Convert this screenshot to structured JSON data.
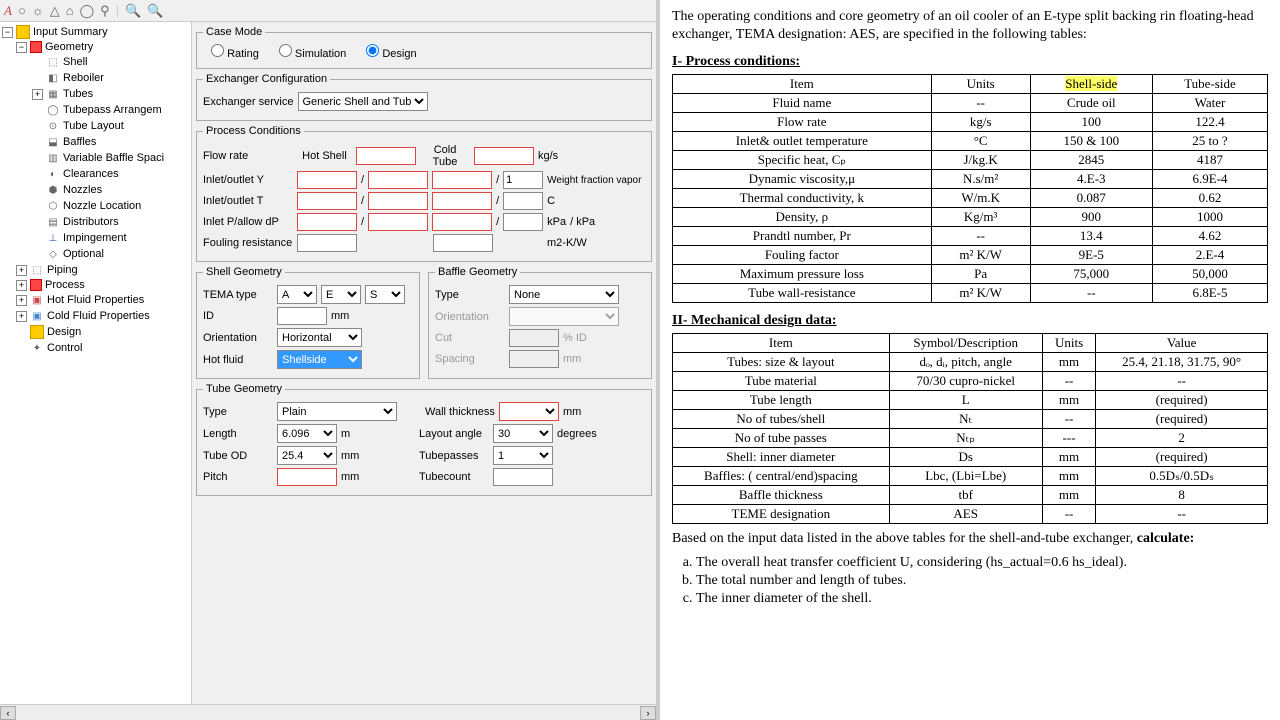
{
  "tree": {
    "root": "Input Summary",
    "geometry": "Geometry",
    "shell": "Shell",
    "reboiler": "Reboiler",
    "tubes": "Tubes",
    "tubepass": "Tubepass Arrangem",
    "layout": "Tube Layout",
    "baffles": "Baffles",
    "varbaffle": "Variable Baffle Spaci",
    "clearances": "Clearances",
    "nozzles": "Nozzles",
    "nozzleloc": "Nozzle Location",
    "distributors": "Distributors",
    "impingement": "Impingement",
    "optional": "Optional",
    "piping": "Piping",
    "process": "Process",
    "hotfluid": "Hot Fluid Properties",
    "coldfluid": "Cold Fluid Properties",
    "design": "Design",
    "control": "Control"
  },
  "form": {
    "casemode": {
      "legend": "Case Mode",
      "rating": "Rating",
      "simulation": "Simulation",
      "design": "Design"
    },
    "exconfig": {
      "legend": "Exchanger Configuration",
      "service_lbl": "Exchanger service",
      "service_val": "Generic Shell and Tube"
    },
    "proccond": {
      "legend": "Process Conditions",
      "flowrate": "Flow rate",
      "hotshell": "Hot Shell",
      "coldtube": "Cold Tube",
      "kgs": "kg/s",
      "inletY": "Inlet/outlet Y",
      "one": "1",
      "wfv": "Weight fraction vapor",
      "inletT": "Inlet/outlet T",
      "C": "C",
      "inletP": "Inlet P/allow dP",
      "kpa": "kPa",
      "kpa2": "/   kPa",
      "fouling": "Fouling resistance",
      "m2kw": "m2-K/W"
    },
    "shellgeo": {
      "legend": "Shell Geometry",
      "tematype": "TEMA type",
      "a": "A",
      "e": "E",
      "s": "S",
      "id": "ID",
      "mm": "mm",
      "orient": "Orientation",
      "horiz": "Horizontal",
      "hotfluid": "Hot fluid",
      "shellside": "Shellside"
    },
    "bafflegeo": {
      "legend": "Baffle Geometry",
      "type": "Type",
      "none": "None",
      "orient": "Orientation",
      "cut": "Cut",
      "pid": "% ID",
      "spacing": "Spacing",
      "mm": "mm"
    },
    "tubegeo": {
      "legend": "Tube Geometry",
      "type": "Type",
      "plain": "Plain",
      "wallthick": "Wall thickness",
      "mm": "mm",
      "length": "Length",
      "lenval": "6.096",
      "m": "m",
      "layoutang": "Layout angle",
      "ang30": "30",
      "deg": "degrees",
      "tubeod": "Tube OD",
      "odval": "25.4",
      "tubepasses": "Tubepasses",
      "tp1": "1",
      "pitch": "Pitch",
      "tubecount": "Tubecount"
    }
  },
  "doc": {
    "intro": "The operating conditions and core geometry of an oil cooler of an E-type split backing rin floating-head exchanger, TEMA designation: AES, are specified in the following tables:",
    "h1": "I- Process conditions",
    "t1": {
      "head": [
        "Item",
        "Units",
        "Shell-side",
        "Tube-side"
      ],
      "rows": [
        [
          "Fluid name",
          "--",
          "Crude oil",
          "Water"
        ],
        [
          "Flow rate",
          "kg/s",
          "100",
          "122.4"
        ],
        [
          "Inlet& outlet temperature",
          "°C",
          "150 & 100",
          "25 to ?"
        ],
        [
          "Specific heat, Cₚ",
          "J/kg.K",
          "2845",
          "4187"
        ],
        [
          "Dynamic viscosity,μ",
          "N.s/m²",
          "4.E-3",
          "6.9E-4"
        ],
        [
          "Thermal conductivity, k",
          "W/m.K",
          "0.087",
          "0.62"
        ],
        [
          "Density, ρ",
          "Kg/m³",
          "900",
          "1000"
        ],
        [
          "Prandtl number, Pr",
          "--",
          "13.4",
          "4.62"
        ],
        [
          "Fouling factor",
          "m² K/W",
          "9E-5",
          "2.E-4"
        ],
        [
          "Maximum pressure loss",
          "Pa",
          "75,000",
          "50,000"
        ],
        [
          "Tube wall-resistance",
          "m² K/W",
          "--",
          "6.8E-5"
        ]
      ]
    },
    "h2": "II- Mechanical design data:",
    "t2": {
      "head": [
        "Item",
        "Symbol/Description",
        "Units",
        "Value"
      ],
      "rows": [
        [
          "Tubes: size & layout",
          "dₒ, dᵢ, pitch, angle",
          "mm",
          "25.4, 21.18, 31.75, 90°"
        ],
        [
          "Tube material",
          "70/30 cupro-nickel",
          "--",
          "--"
        ],
        [
          "Tube length",
          "L",
          "mm",
          "(required)"
        ],
        [
          "No of tubes/shell",
          "Nₜ",
          "--",
          "(required)"
        ],
        [
          "No of tube passes",
          "Nₜₚ",
          "---",
          "2"
        ],
        [
          "Shell: inner diameter",
          "Ds",
          "mm",
          "(required)"
        ],
        [
          "Baffles: ( central/end)spacing",
          "Lbc, (Lbi=Lbe)",
          "mm",
          "0.5Dₛ/0.5Dₛ"
        ],
        [
          "Baffle thickness",
          "tbf",
          "mm",
          "8"
        ],
        [
          "TEME designation",
          "AES",
          "--",
          "--"
        ]
      ]
    },
    "outro": "Based on the input data listed in the above tables for the shell-and-tube exchanger, calculate:",
    "qa": "The overall heat transfer coefficient U, considering (hs_actual=0.6 hs_ideal).",
    "qb": "The total number and length of tubes.",
    "qc": "The inner diameter of the shell."
  }
}
